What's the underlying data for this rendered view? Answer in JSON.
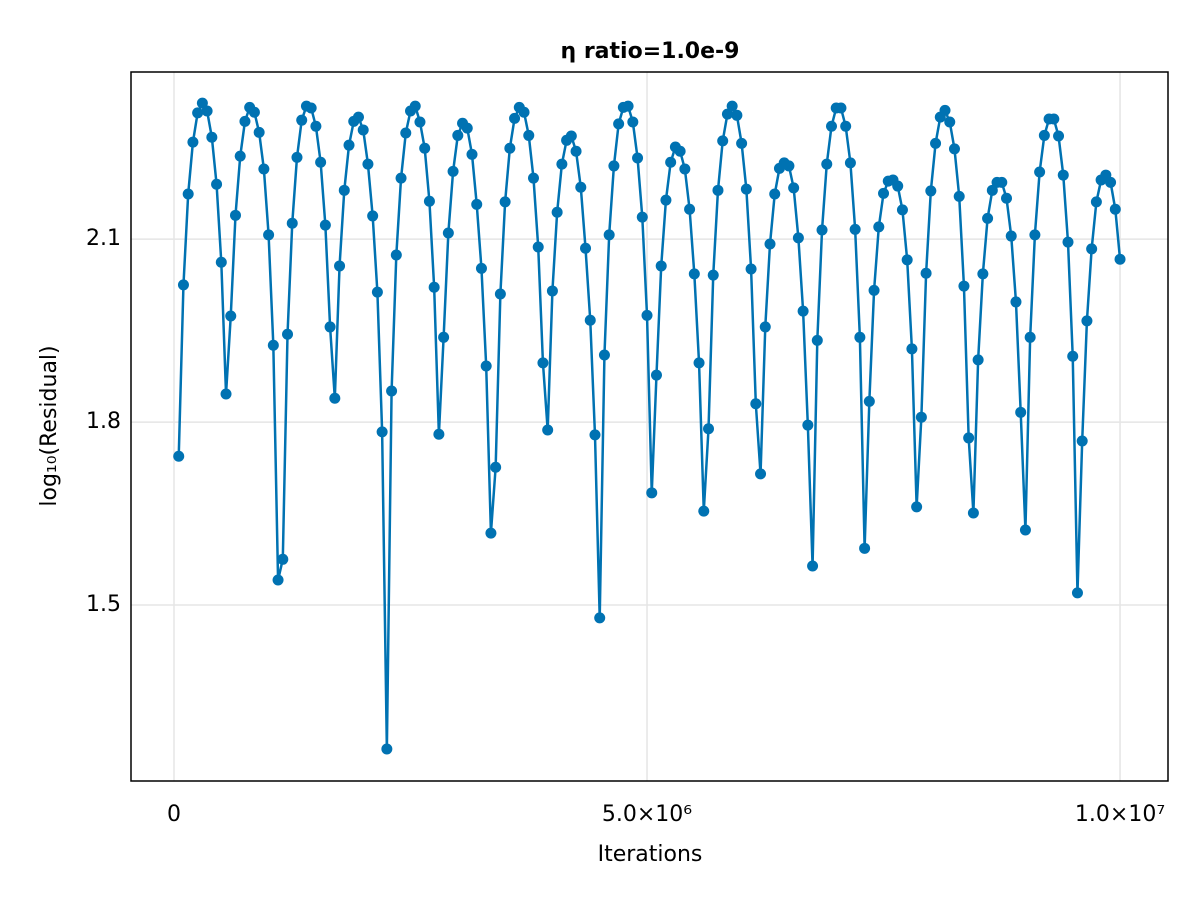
{
  "chart_data": {
    "type": "line",
    "title": "η ratio=1.0e-9",
    "x_label": "Iterations",
    "y_label": "log₁₀(Residual)",
    "color": "#0072b2",
    "markers": true,
    "grid": true,
    "xlim": [
      -454500,
      10507000
    ],
    "ylim": [
      1.2115,
      2.374
    ],
    "xticks": [
      0,
      {
        "value": 5000000,
        "label": "5.0×10⁶"
      },
      {
        "value": 10000000,
        "label": "1.0×10⁷"
      }
    ],
    "yticks": [
      1.5,
      1.8,
      2.1
    ],
    "x": [
      50000,
      100000,
      150000,
      200000,
      250000,
      300000,
      350000,
      400000,
      450000,
      500000,
      550000,
      600000,
      650000,
      700000,
      750000,
      800000,
      850000,
      900000,
      950000,
      1000000,
      1050000,
      1100000,
      1150000,
      1200000,
      1250000,
      1300000,
      1350000,
      1400000,
      1450000,
      1500000,
      1550000,
      1600000,
      1650000,
      1700000,
      1750000,
      1800000,
      1850000,
      1900000,
      1950000,
      2000000,
      2050000,
      2100000,
      2150000,
      2200000,
      2250000,
      2300000,
      2350000,
      2400000,
      2450000,
      2500000,
      2550000,
      2600000,
      2650000,
      2700000,
      2750000,
      2800000,
      2850000,
      2900000,
      2950000,
      3000000,
      3050000,
      3100000,
      3150000,
      3200000,
      3250000,
      3300000,
      3350000,
      3400000,
      3450000,
      3500000,
      3550000,
      3600000,
      3650000,
      3700000,
      3750000,
      3800000,
      3850000,
      3900000,
      3950000,
      4000000,
      4050000,
      4100000,
      4150000,
      4200000,
      4250000,
      4300000,
      4350000,
      4400000,
      4450000,
      4500000,
      4550000,
      4600000,
      4650000,
      4700000,
      4750000,
      4800000,
      4850000,
      4900000,
      4950000,
      5000000,
      5050000,
      5100000,
      5150000,
      5200000,
      5250000,
      5300000,
      5350000,
      5400000,
      5450000,
      5500000,
      5550000,
      5600000,
      5650000,
      5700000,
      5750000,
      5800000,
      5850000,
      5900000,
      5950000,
      6000000,
      6050000,
      6100000,
      6150000,
      6200000,
      6250000,
      6300000,
      6350000,
      6400000,
      6450000,
      6500000,
      6550000,
      6600000,
      6650000,
      6700000,
      6750000,
      6800000,
      6850000,
      6900000,
      6950000,
      7000000,
      7050000,
      7100000,
      7150000,
      7200000,
      7250000,
      7300000,
      7350000,
      7400000,
      7450000,
      7500000,
      7550000,
      7600000,
      7650000,
      7700000,
      7750000,
      7800000,
      7850000,
      7900000,
      7950000,
      8000000,
      8050000,
      8100000,
      8150000,
      8200000,
      8250000,
      8300000,
      8350000,
      8400000,
      8450000,
      8500000,
      8550000,
      8600000,
      8650000,
      8700000,
      8750000,
      8800000,
      8850000,
      8900000,
      8950000,
      9000000,
      9050000,
      9100000,
      9150000,
      9200000,
      9250000,
      9300000,
      9350000,
      9400000,
      9450000,
      9500000,
      9550000,
      9600000,
      9650000,
      9700000,
      9750000,
      9800000,
      9850000,
      9900000,
      9950000,
      10000000
    ],
    "values": [
      1.744,
      2.025,
      2.174,
      2.259,
      2.307,
      2.323,
      2.31,
      2.267,
      2.19,
      2.062,
      1.846,
      1.974,
      2.139,
      2.236,
      2.293,
      2.316,
      2.308,
      2.275,
      2.215,
      2.107,
      1.926,
      1.541,
      1.575,
      1.944,
      2.126,
      2.234,
      2.295,
      2.318,
      2.315,
      2.285,
      2.226,
      2.123,
      1.956,
      1.839,
      2.056,
      2.18,
      2.254,
      2.293,
      2.3,
      2.279,
      2.223,
      2.138,
      2.013,
      1.784,
      1.264,
      1.851,
      2.074,
      2.2,
      2.274,
      2.31,
      2.318,
      2.292,
      2.249,
      2.162,
      2.021,
      1.78,
      1.939,
      2.11,
      2.211,
      2.27,
      2.29,
      2.282,
      2.239,
      2.157,
      2.052,
      1.892,
      1.618,
      1.726,
      2.01,
      2.161,
      2.249,
      2.298,
      2.316,
      2.308,
      2.27,
      2.2,
      2.087,
      1.897,
      1.787,
      2.015,
      2.144,
      2.223,
      2.262,
      2.269,
      2.244,
      2.185,
      2.085,
      1.967,
      1.779,
      1.479,
      1.91,
      2.107,
      2.22,
      2.289,
      2.316,
      2.318,
      2.292,
      2.233,
      2.136,
      1.975,
      1.684,
      1.877,
      2.056,
      2.164,
      2.226,
      2.251,
      2.244,
      2.215,
      2.149,
      2.043,
      1.897,
      1.654,
      1.789,
      2.041,
      2.18,
      2.261,
      2.305,
      2.318,
      2.303,
      2.257,
      2.182,
      2.051,
      1.83,
      1.715,
      1.956,
      2.092,
      2.174,
      2.216,
      2.225,
      2.22,
      2.184,
      2.102,
      1.982,
      1.795,
      1.564,
      1.934,
      2.115,
      2.223,
      2.285,
      2.315,
      2.315,
      2.285,
      2.225,
      2.116,
      1.939,
      1.593,
      1.834,
      2.016,
      2.12,
      2.175,
      2.195,
      2.197,
      2.187,
      2.148,
      2.066,
      1.92,
      1.661,
      1.808,
      2.044,
      2.179,
      2.257,
      2.3,
      2.311,
      2.292,
      2.248,
      2.17,
      2.023,
      1.774,
      1.651,
      1.902,
      2.043,
      2.134,
      2.18,
      2.193,
      2.193,
      2.167,
      2.105,
      1.997,
      1.816,
      1.623,
      1.939,
      2.107,
      2.21,
      2.27,
      2.297,
      2.297,
      2.269,
      2.205,
      2.095,
      1.908,
      1.52,
      1.769,
      1.966,
      2.084,
      2.161,
      2.197,
      2.205,
      2.193,
      2.149,
      2.067
    ]
  }
}
